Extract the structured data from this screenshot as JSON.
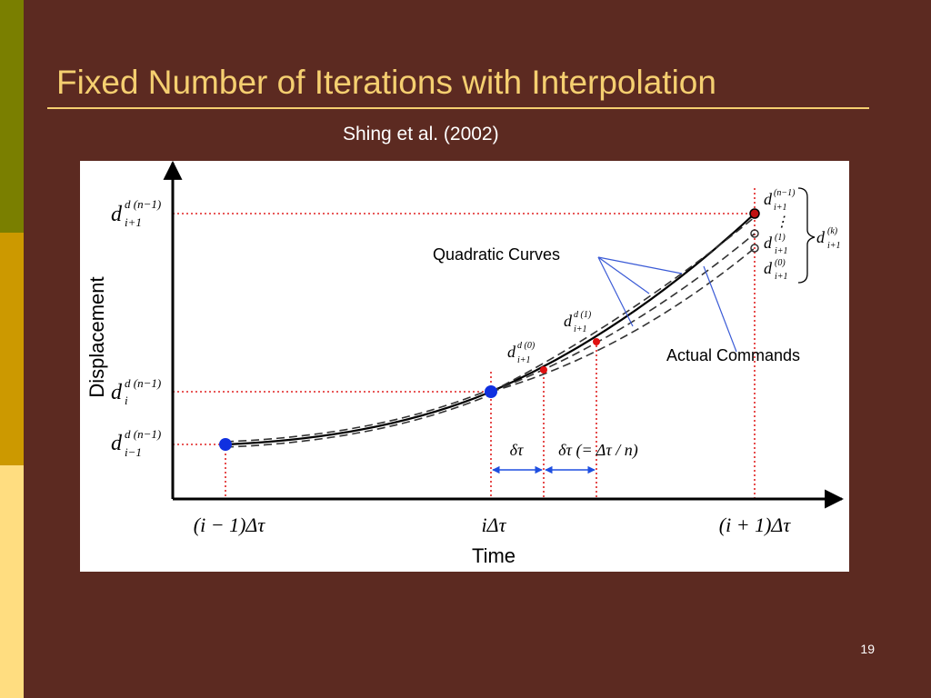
{
  "slide": {
    "title": "Fixed Number of Iterations with Interpolation",
    "citation": "Shing et al. (2002)",
    "page_number": "19",
    "colors": {
      "background": "#5C2A21",
      "title": "#F5CF70",
      "bar_top": "#7A7F00",
      "bar_mid": "#CC9900",
      "bar_bottom": "#FFDD80"
    }
  },
  "diagram": {
    "y_axis_label": "Displacement",
    "x_axis_label": "Time",
    "y_labels": {
      "top": {
        "base": "d",
        "sup": "d (n−1)",
        "sub": "i+1"
      },
      "mid": {
        "base": "d",
        "sup": "d (n−1)",
        "sub": "i"
      },
      "low": {
        "base": "d",
        "sup": "d (n−1)",
        "sub": "i−1"
      }
    },
    "x_labels": {
      "left": "(i − 1)Δτ",
      "mid": "iΔτ",
      "right": "(i + 1)Δτ"
    },
    "interval_labels": {
      "first": "δτ",
      "second": "δτ (= Δτ / n)"
    },
    "point_labels": {
      "d0": {
        "base": "d",
        "sup": "d (0)",
        "sub": "i+1"
      },
      "d1": {
        "base": "d",
        "sup": "d (1)",
        "sub": "i+1"
      }
    },
    "right_labels": {
      "n_minus_1": {
        "base": "d",
        "sup": "(n−1)",
        "sub": "i+1"
      },
      "ellipsis": "⋮",
      "one": {
        "base": "d",
        "sup": "(1)",
        "sub": "i+1"
      },
      "zero": {
        "base": "d",
        "sup": "(0)",
        "sub": "i+1"
      },
      "k": {
        "base": "d",
        "sup": "(k)",
        "sub": "i+1"
      }
    },
    "callouts": {
      "quadratic": "Quadratic Curves",
      "actual": "Actual Commands"
    },
    "colors": {
      "guide": "#E02020",
      "point": "#1030E0",
      "callout": "#3B5BD6",
      "interval": "#1F4FE0"
    }
  }
}
